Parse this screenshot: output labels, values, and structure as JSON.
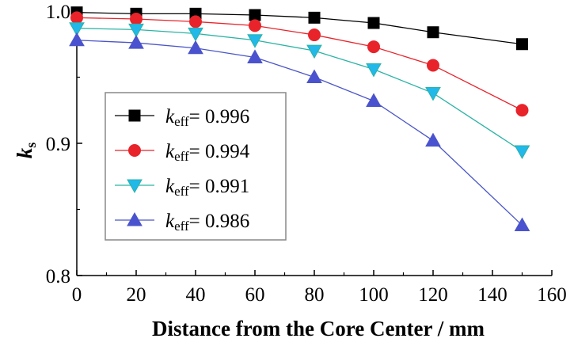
{
  "chart_data": {
    "type": "line",
    "xlabel": "Distance from the Core Center / mm",
    "ylabel_main": "k",
    "ylabel_sub": "s",
    "xlim": [
      0,
      160
    ],
    "ylim": [
      0.8,
      1.0
    ],
    "xticks": [
      0,
      20,
      40,
      60,
      80,
      100,
      120,
      140,
      160
    ],
    "yticks": [
      0.8,
      0.9,
      1.0
    ],
    "ytick_labels": [
      "0.8",
      "0.9",
      "1.0"
    ],
    "x": [
      0,
      20,
      40,
      60,
      80,
      100,
      120,
      150
    ],
    "grid": false,
    "legend_position": "center-left",
    "legend_prefix": "k",
    "legend_sub": "eff",
    "series": [
      {
        "name": "= 0.996",
        "marker": "square",
        "color": "#000000",
        "fill": "#000000",
        "values": [
          0.999,
          0.998,
          0.998,
          0.997,
          0.995,
          0.991,
          0.984,
          0.975
        ]
      },
      {
        "name": "= 0.994",
        "marker": "circle",
        "color": "#e8232a",
        "fill": "#e8232a",
        "values": [
          0.995,
          0.994,
          0.992,
          0.989,
          0.982,
          0.973,
          0.959,
          0.925
        ]
      },
      {
        "name": "= 0.991",
        "marker": "triangle-down",
        "color": "#2bb3a5",
        "fill": "#22b8ea",
        "values": [
          0.987,
          0.986,
          0.983,
          0.978,
          0.97,
          0.956,
          0.938,
          0.894
        ]
      },
      {
        "name": "= 0.986",
        "marker": "triangle-up",
        "color": "#4a55c8",
        "fill": "#4a52d0",
        "values": [
          0.978,
          0.976,
          0.972,
          0.965,
          0.95,
          0.932,
          0.902,
          0.838
        ]
      }
    ]
  }
}
